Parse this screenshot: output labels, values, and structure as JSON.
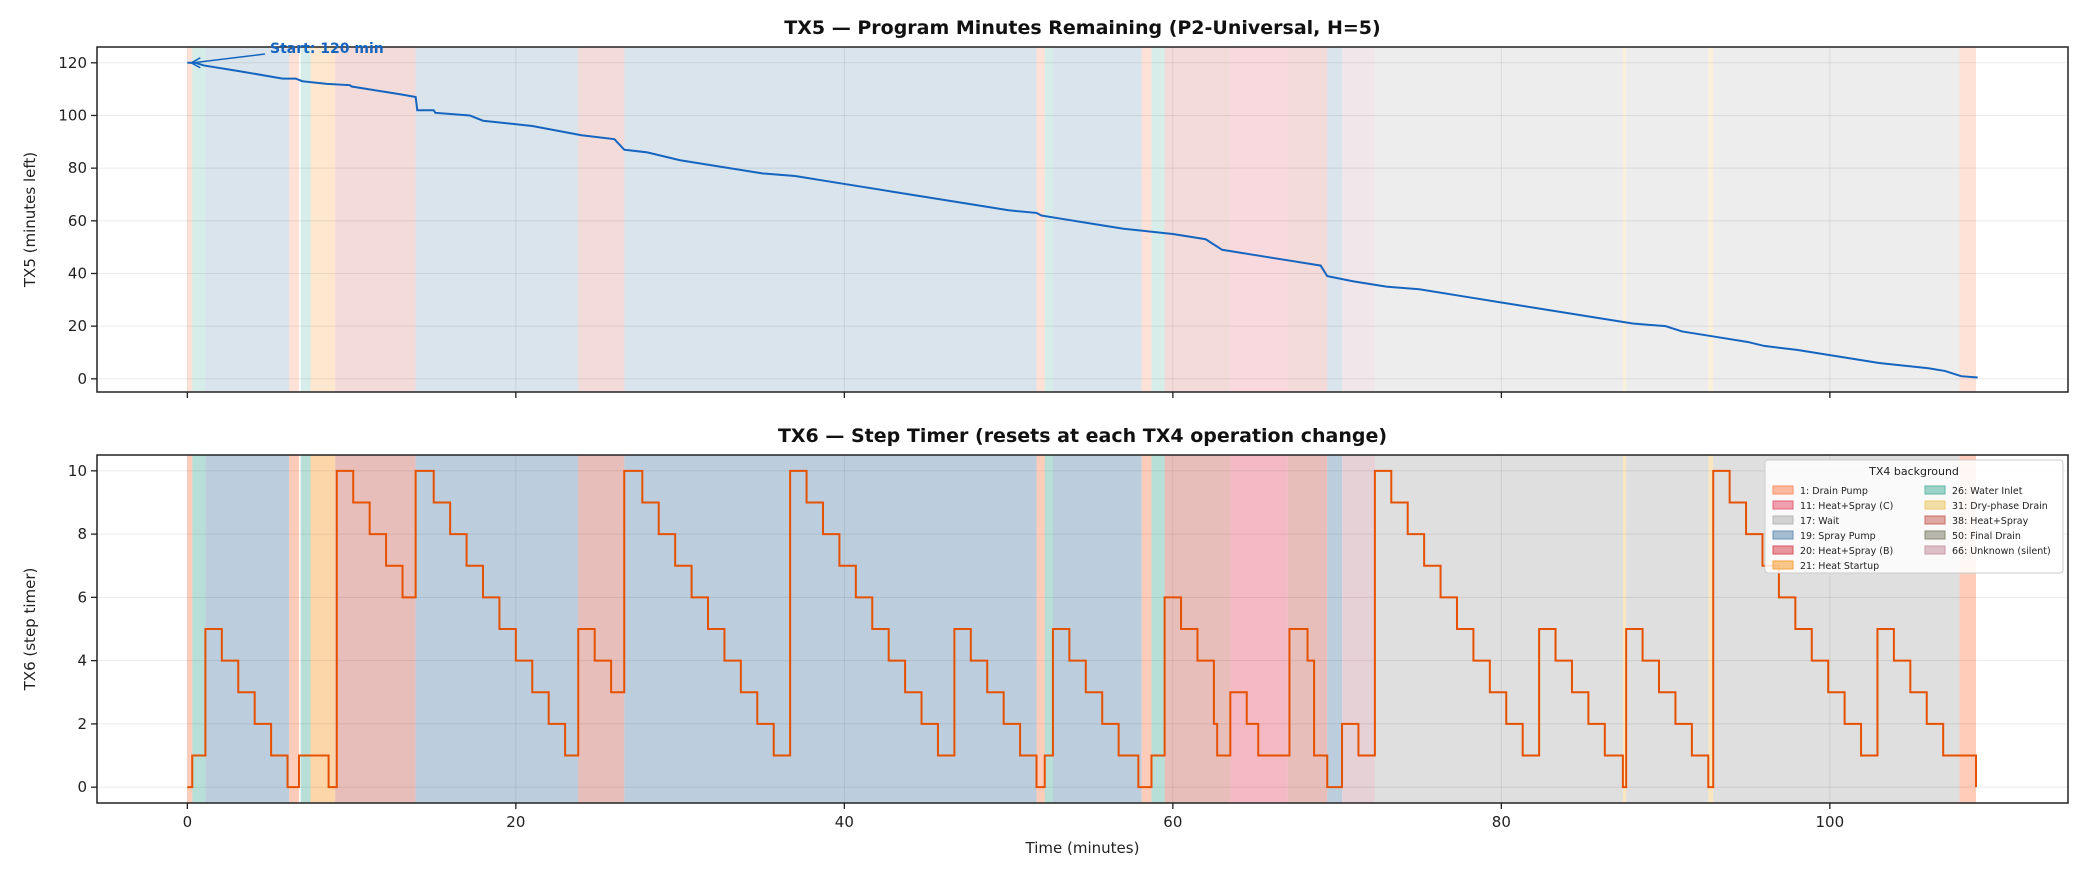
{
  "chart_data": [
    {
      "type": "line",
      "title": "TX5 — Program Minutes Remaining (P2-Universal, H=5)",
      "xlabel": "",
      "ylabel": "TX5 (minutes left)",
      "xlim": [
        -5.5,
        114.5
      ],
      "ylim": [
        -5,
        126
      ],
      "xticks": [
        0,
        20,
        40,
        60,
        80,
        100
      ],
      "yticks": [
        0,
        20,
        40,
        60,
        80,
        100,
        120
      ],
      "grid": true,
      "color": "#1565c0",
      "annotation": {
        "text": "Start: 120 min",
        "x": 0,
        "y": 120
      },
      "series": [
        {
          "name": "TX5",
          "points": [
            [
              0,
              120
            ],
            [
              0.5,
              120
            ],
            [
              1,
              119
            ],
            [
              3,
              117
            ],
            [
              5.8,
              114
            ],
            [
              6.6,
              114
            ],
            [
              7,
              113
            ],
            [
              8.5,
              112
            ],
            [
              9.9,
              111.5
            ],
            [
              10,
              111
            ],
            [
              12,
              109
            ],
            [
              13,
              108
            ],
            [
              13.9,
              107
            ],
            [
              14,
              102
            ],
            [
              15,
              102
            ],
            [
              15.1,
              101
            ],
            [
              17.2,
              100
            ],
            [
              18,
              98
            ],
            [
              21,
              96
            ],
            [
              24,
              92.5
            ],
            [
              26,
              91
            ],
            [
              26.6,
              87
            ],
            [
              28,
              86
            ],
            [
              30,
              83
            ],
            [
              32,
              81
            ],
            [
              35,
              78
            ],
            [
              37,
              77
            ],
            [
              40,
              74
            ],
            [
              43,
              71
            ],
            [
              46,
              68
            ],
            [
              50,
              64
            ],
            [
              51.7,
              63
            ],
            [
              52,
              62
            ],
            [
              53,
              61
            ],
            [
              55,
              59
            ],
            [
              57,
              57
            ],
            [
              58.5,
              56
            ],
            [
              60,
              55
            ],
            [
              62,
              53
            ],
            [
              63,
              49
            ],
            [
              65,
              47
            ],
            [
              67,
              45
            ],
            [
              69,
              43
            ],
            [
              69.4,
              39
            ],
            [
              71,
              37
            ],
            [
              73,
              35
            ],
            [
              75,
              34
            ],
            [
              78,
              31
            ],
            [
              80,
              29
            ],
            [
              82,
              27
            ],
            [
              85,
              24
            ],
            [
              87,
              22
            ],
            [
              88,
              21
            ],
            [
              90,
              20
            ],
            [
              91,
              18
            ],
            [
              93,
              16
            ],
            [
              95,
              14
            ],
            [
              96,
              12.5
            ],
            [
              98,
              11
            ],
            [
              100,
              9
            ],
            [
              103,
              6
            ],
            [
              106,
              4
            ],
            [
              107,
              3
            ],
            [
              108,
              1
            ],
            [
              109,
              0.5
            ]
          ]
        }
      ]
    },
    {
      "type": "line",
      "title": "TX6 — Step Timer (resets at each TX4 operation change)",
      "xlabel": "Time (minutes)",
      "ylabel": "TX6 (step timer)",
      "xlim": [
        -5.5,
        114.5
      ],
      "ylim": [
        -0.5,
        10.5
      ],
      "xticks": [
        0,
        20,
        40,
        60,
        80,
        100
      ],
      "yticks": [
        0,
        2,
        4,
        6,
        8,
        10
      ],
      "grid": true,
      "color": "#e65100",
      "drawstyle": "steps-post",
      "legend_title": "TX4 background",
      "legend_position": "upper-right",
      "series": [
        {
          "name": "TX6",
          "points": [
            [
              0,
              0
            ],
            [
              0.3,
              1
            ],
            [
              1.1,
              5
            ],
            [
              2.1,
              4
            ],
            [
              3.1,
              3
            ],
            [
              4.1,
              2
            ],
            [
              5.1,
              1
            ],
            [
              6.1,
              0
            ],
            [
              6.8,
              1
            ],
            [
              8.6,
              0
            ],
            [
              9.1,
              10
            ],
            [
              10.1,
              9
            ],
            [
              11.1,
              8
            ],
            [
              12.1,
              7
            ],
            [
              13.1,
              6
            ],
            [
              13.9,
              10
            ],
            [
              15,
              9
            ],
            [
              16,
              8
            ],
            [
              17,
              7
            ],
            [
              18,
              6
            ],
            [
              19,
              5
            ],
            [
              20,
              4
            ],
            [
              21,
              3
            ],
            [
              22,
              2
            ],
            [
              23,
              1
            ],
            [
              23.8,
              5
            ],
            [
              24.8,
              4
            ],
            [
              25.8,
              3
            ],
            [
              26.6,
              10
            ],
            [
              27.7,
              9
            ],
            [
              28.7,
              8
            ],
            [
              29.7,
              7
            ],
            [
              30.7,
              6
            ],
            [
              31.7,
              5
            ],
            [
              32.7,
              4
            ],
            [
              33.7,
              3
            ],
            [
              34.7,
              2
            ],
            [
              35.7,
              1
            ],
            [
              36.7,
              10
            ],
            [
              37.7,
              9
            ],
            [
              38.7,
              8
            ],
            [
              39.7,
              7
            ],
            [
              40.7,
              6
            ],
            [
              41.7,
              5
            ],
            [
              42.7,
              4
            ],
            [
              43.7,
              3
            ],
            [
              44.7,
              2
            ],
            [
              45.7,
              1
            ],
            [
              46.7,
              5
            ],
            [
              47.7,
              4
            ],
            [
              48.7,
              3
            ],
            [
              49.7,
              2
            ],
            [
              50.7,
              1
            ],
            [
              51.7,
              0
            ],
            [
              52.2,
              1
            ],
            [
              52.7,
              5
            ],
            [
              53.7,
              4
            ],
            [
              54.7,
              3
            ],
            [
              55.7,
              2
            ],
            [
              56.7,
              1
            ],
            [
              57.9,
              0
            ],
            [
              58.7,
              1
            ],
            [
              59.5,
              6
            ],
            [
              60.5,
              5
            ],
            [
              61.5,
              4
            ],
            [
              62.5,
              2
            ],
            [
              62.7,
              1
            ],
            [
              63.5,
              3
            ],
            [
              64.5,
              2
            ],
            [
              65.2,
              1
            ],
            [
              67.1,
              5
            ],
            [
              68.2,
              4
            ],
            [
              68.6,
              1
            ],
            [
              69.4,
              0
            ],
            [
              70.3,
              2
            ],
            [
              71.3,
              1
            ],
            [
              72.3,
              10
            ],
            [
              73.3,
              9
            ],
            [
              74.3,
              8
            ],
            [
              75.3,
              7
            ],
            [
              76.3,
              6
            ],
            [
              77.3,
              5
            ],
            [
              78.3,
              4
            ],
            [
              79.3,
              3
            ],
            [
              80.3,
              2
            ],
            [
              81.3,
              1
            ],
            [
              82.3,
              5
            ],
            [
              83.3,
              4
            ],
            [
              84.3,
              3
            ],
            [
              85.3,
              2
            ],
            [
              86.3,
              1
            ],
            [
              87.4,
              0
            ],
            [
              87.6,
              5
            ],
            [
              88.6,
              4
            ],
            [
              89.6,
              3
            ],
            [
              90.6,
              2
            ],
            [
              91.6,
              1
            ],
            [
              92.6,
              0
            ],
            [
              92.9,
              10
            ],
            [
              93.9,
              9
            ],
            [
              94.9,
              8
            ],
            [
              95.9,
              7
            ],
            [
              96.9,
              6
            ],
            [
              97.9,
              5
            ],
            [
              98.9,
              4
            ],
            [
              99.9,
              3
            ],
            [
              100.9,
              2
            ],
            [
              101.9,
              1
            ],
            [
              102.9,
              5
            ],
            [
              103.9,
              4
            ],
            [
              104.9,
              3
            ],
            [
              105.9,
              2
            ],
            [
              106.9,
              1
            ],
            [
              108.9,
              0
            ]
          ]
        }
      ]
    }
  ],
  "tx4_categories": [
    {
      "code": 1,
      "label": "1: Drain Pump",
      "color": "#fc8d62"
    },
    {
      "code": 11,
      "label": "11: Heat+Spray (C)",
      "color": "#e8637a"
    },
    {
      "code": 17,
      "label": "17: Wait",
      "color": "#b8b8b8"
    },
    {
      "code": 19,
      "label": "19: Spray Pump",
      "color": "#6a93b5"
    },
    {
      "code": 20,
      "label": "20: Heat+Spray (B)",
      "color": "#d9545e"
    },
    {
      "code": 21,
      "label": "21: Heat Startup",
      "color": "#f8a340"
    },
    {
      "code": 26,
      "label": "26: Water Inlet",
      "color": "#5fb8a8"
    },
    {
      "code": 31,
      "label": "31: Dry-phase Drain",
      "color": "#efc970"
    },
    {
      "code": 38,
      "label": "38: Heat+Spray",
      "color": "#cc6f66"
    },
    {
      "code": 50,
      "label": "50: Final Drain",
      "color": "#8a8a78"
    },
    {
      "code": 66,
      "label": "66: Unknown (silent)",
      "color": "#c89aa6"
    }
  ],
  "tx4_segments": [
    [
      0,
      0.3,
      1
    ],
    [
      0.3,
      1.1,
      26
    ],
    [
      1.1,
      6.2,
      19
    ],
    [
      6.2,
      6.8,
      1
    ],
    [
      6.9,
      7.5,
      26
    ],
    [
      7.5,
      9.0,
      21
    ],
    [
      9.0,
      13.9,
      38
    ],
    [
      13.9,
      23.8,
      19
    ],
    [
      23.8,
      26.6,
      38
    ],
    [
      26.6,
      51.7,
      19
    ],
    [
      51.7,
      52.2,
      1
    ],
    [
      52.2,
      52.7,
      26
    ],
    [
      52.7,
      58.1,
      19
    ],
    [
      58.1,
      58.7,
      1
    ],
    [
      58.7,
      59.5,
      26
    ],
    [
      59.5,
      63.5,
      38
    ],
    [
      63.5,
      67.0,
      11
    ],
    [
      67.0,
      69.4,
      38
    ],
    [
      69.4,
      70.3,
      19
    ],
    [
      70.3,
      72.3,
      66
    ],
    [
      72.3,
      87.4,
      17
    ],
    [
      87.4,
      87.6,
      31
    ],
    [
      87.6,
      92.6,
      17
    ],
    [
      92.6,
      92.9,
      31
    ],
    [
      92.9,
      107.9,
      17
    ],
    [
      107.9,
      108.9,
      1
    ]
  ]
}
